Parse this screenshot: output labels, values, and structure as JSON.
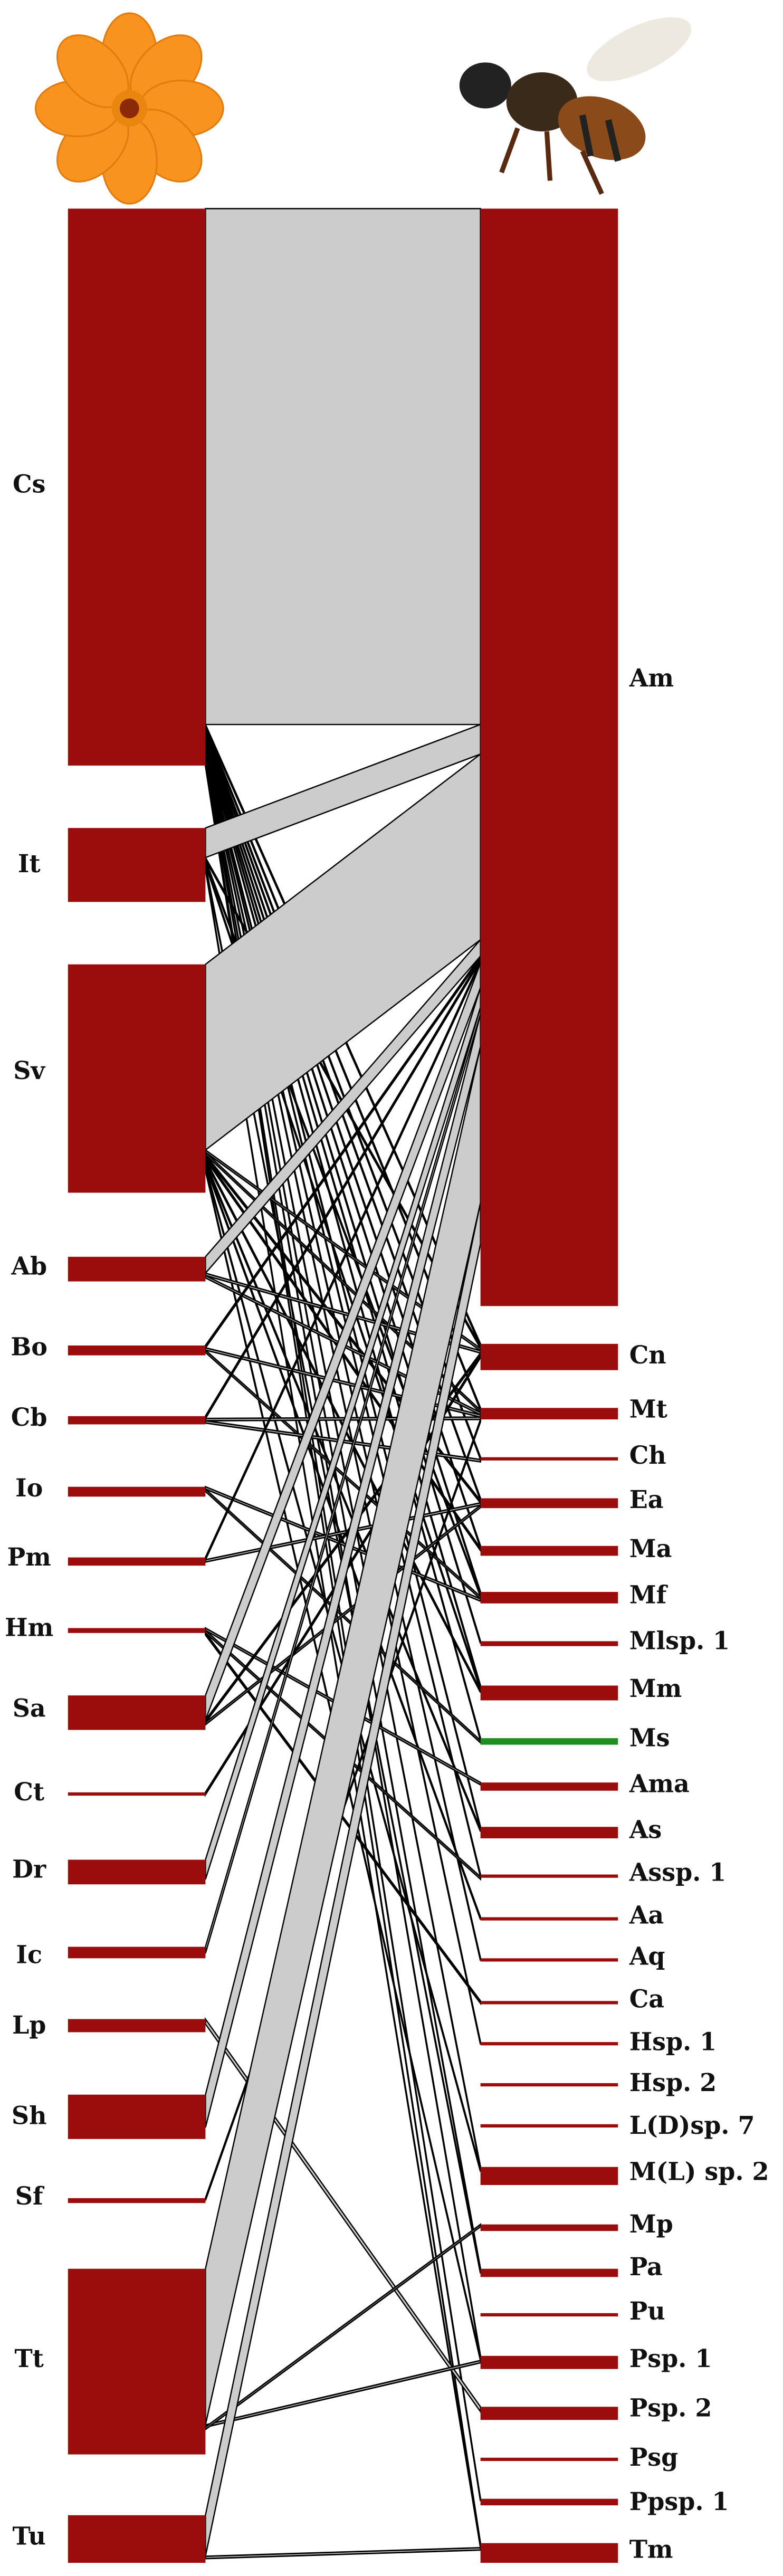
{
  "left_nodes": [
    {
      "label": "Cs"
    },
    {
      "label": "It"
    },
    {
      "label": "Sv"
    },
    {
      "label": "Ab"
    },
    {
      "label": "Bo"
    },
    {
      "label": "Cb"
    },
    {
      "label": "Io"
    },
    {
      "label": "Pm"
    },
    {
      "label": "Hm"
    },
    {
      "label": "Sa"
    },
    {
      "label": "Ct"
    },
    {
      "label": "Dr"
    },
    {
      "label": "Ic"
    },
    {
      "label": "Lp"
    },
    {
      "label": "Sh"
    },
    {
      "label": "Sf"
    },
    {
      "label": "Tt"
    },
    {
      "label": "Tu"
    }
  ],
  "right_nodes": [
    {
      "label": "Am"
    },
    {
      "label": "Cn"
    },
    {
      "label": "Mt"
    },
    {
      "label": "Ch"
    },
    {
      "label": "Ea"
    },
    {
      "label": "Ma"
    },
    {
      "label": "Mf"
    },
    {
      "label": "Mlsp. 1"
    },
    {
      "label": "Mm"
    },
    {
      "label": "Ms"
    },
    {
      "label": "Ama"
    },
    {
      "label": "As"
    },
    {
      "label": "Assp. 1"
    },
    {
      "label": "Aa"
    },
    {
      "label": "Aq"
    },
    {
      "label": "Ca"
    },
    {
      "label": "Hsp. 1"
    },
    {
      "label": "Hsp. 2"
    },
    {
      "label": "L(D)sp. 7"
    },
    {
      "label": "M(L) sp. 2"
    },
    {
      "label": "Mp"
    },
    {
      "label": "Pa"
    },
    {
      "label": "Pu"
    },
    {
      "label": "Psp. 1"
    },
    {
      "label": "Psp. 2"
    },
    {
      "label": "Psg"
    },
    {
      "label": "Ppsp. 1"
    },
    {
      "label": "Tm"
    }
  ]
}
